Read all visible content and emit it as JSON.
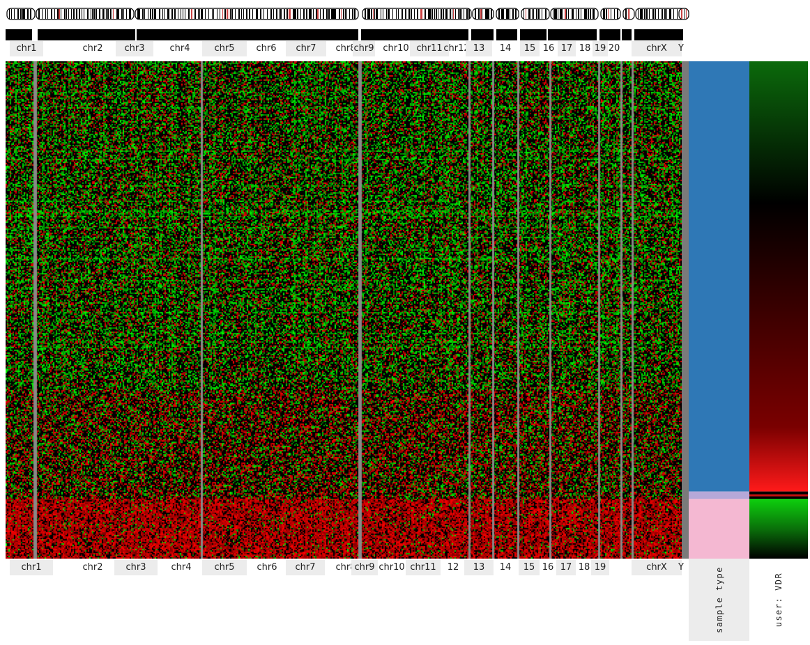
{
  "chart_data": {
    "type": "heatmap",
    "title": "",
    "xlabel": "",
    "ylabel": "",
    "chromosomes_top": [
      "chr1",
      "chr2",
      "chr3",
      "chr4",
      "chr5",
      "chr6",
      "chr7",
      "chr8",
      "chr9",
      "chr10",
      "chr11",
      "chr12",
      "13",
      "14",
      "15",
      "16",
      "17",
      "18",
      "19",
      "20",
      "chrX",
      "Y"
    ],
    "chromosomes_bottom": [
      "chr1",
      "chr2",
      "chr3",
      "chr4",
      "chr5",
      "chr6",
      "chr7",
      "chr8",
      "chr9",
      "chr10",
      "chr11",
      "12",
      "13",
      "14",
      "15",
      "16",
      "17",
      "18",
      "19",
      "",
      "chrX",
      "Y"
    ],
    "color_scale": {
      "low": "#00e000",
      "mid": "#000000",
      "high": "#e00000"
    },
    "tracks": [
      {
        "label": "sample type",
        "categories": [
          {
            "color": "#2f78b6",
            "fraction": 0.865
          },
          {
            "color": "#b6a8d8",
            "fraction": 0.015
          },
          {
            "color": "#f4b8d2",
            "fraction": 0.12
          }
        ]
      },
      {
        "label": "user: VDR",
        "gradient": "red-black-green"
      }
    ],
    "group_split_fraction": 0.88
  }
}
